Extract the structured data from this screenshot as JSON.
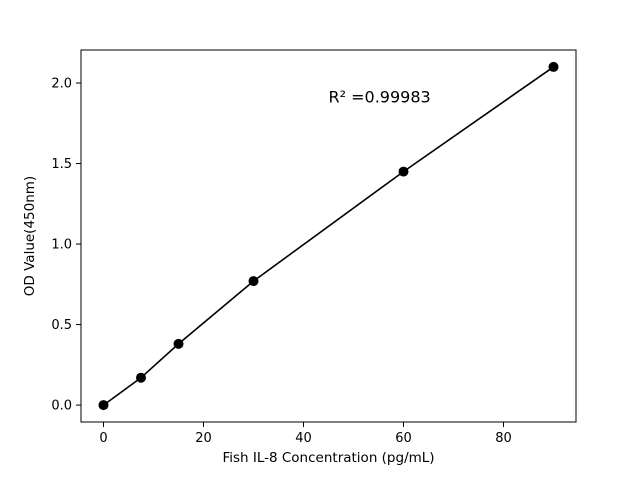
{
  "figure": {
    "background": "#ffffff"
  },
  "chart_data": {
    "type": "scatter",
    "title": "",
    "xlabel": "Fish IL-8 Concentration (pg/mL)",
    "ylabel": "OD Value(450nm)",
    "x": [
      0,
      7.5,
      15,
      30,
      60,
      90
    ],
    "y": [
      0.0,
      0.17,
      0.38,
      0.77,
      1.45,
      2.1
    ],
    "xlim": [
      -4.5,
      94.5
    ],
    "ylim": [
      -0.105,
      2.205
    ],
    "xticks": [
      0,
      20,
      40,
      60,
      80
    ],
    "xtick_labels": [
      "0",
      "20",
      "40",
      "60",
      "80"
    ],
    "yticks": [
      0.0,
      0.5,
      1.0,
      1.5,
      2.0
    ],
    "ytick_labels": [
      "0.0",
      "0.5",
      "1.0",
      "1.5",
      "2.0"
    ],
    "annotation": {
      "text": "R² =0.99983",
      "x": 45,
      "y": 1.88
    },
    "line_color": "#000000",
    "marker_color": "#000000",
    "marker_radius": 5,
    "grid": false,
    "legend": null
  }
}
